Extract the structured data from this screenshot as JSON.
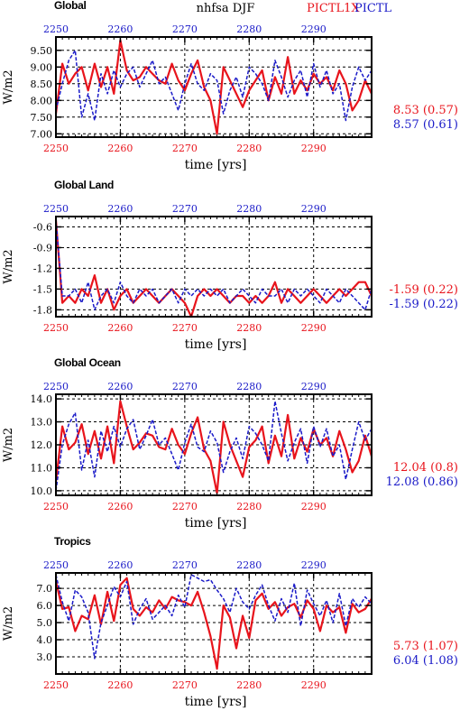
{
  "header": {
    "title": "nhfsa DJF",
    "legend_red": "PICTL1X",
    "legend_blue": "PICTL"
  },
  "colors": {
    "red": "#e8141c",
    "blue": "#1a1ac8",
    "black": "#000000"
  },
  "chart_data": [
    {
      "type": "line",
      "title": "Global",
      "xlabel": "time [yrs]",
      "ylabel": "W/m2",
      "xlim": [
        2250,
        2299
      ],
      "ylim": [
        6.9,
        9.9
      ],
      "x_ticks": [
        "2250",
        "2260",
        "2270",
        "2280",
        "2290"
      ],
      "y_ticks": [
        "7.00",
        "7.50",
        "8.00",
        "8.50",
        "9.00",
        "9.50"
      ],
      "y_tick_values": [
        7.0,
        7.5,
        8.0,
        8.5,
        9.0,
        9.5
      ],
      "grid": true,
      "stats": [
        "8.53 (0.57)",
        "8.57 (0.61)"
      ],
      "series": [
        {
          "name": "PICTL1X",
          "color": "red",
          "dash": false,
          "values": [
            7.6,
            9.1,
            8.5,
            8.8,
            9.0,
            8.3,
            9.1,
            8.4,
            9.0,
            8.2,
            9.8,
            8.9,
            8.6,
            8.7,
            9.0,
            8.8,
            8.6,
            8.5,
            9.1,
            8.6,
            8.3,
            8.8,
            9.2,
            8.4,
            8.0,
            7.0,
            9.0,
            8.6,
            8.2,
            7.8,
            8.3,
            8.6,
            8.9,
            8.0,
            8.7,
            8.2,
            9.3,
            8.2,
            8.6,
            8.3,
            8.8,
            8.5,
            8.7,
            8.3,
            8.9,
            8.5,
            7.7,
            8.0,
            8.6,
            8.2
          ]
        },
        {
          "name": "PICTL",
          "color": "blue",
          "dash": true,
          "values": [
            7.7,
            8.5,
            9.2,
            9.5,
            7.5,
            8.2,
            7.4,
            8.8,
            8.2,
            8.9,
            8.4,
            8.8,
            9.0,
            8.4,
            8.8,
            9.2,
            8.5,
            8.7,
            8.2,
            7.7,
            8.5,
            9.1,
            8.5,
            8.3,
            8.8,
            8.6,
            7.6,
            8.3,
            8.7,
            8.1,
            9.0,
            8.8,
            8.5,
            8.0,
            9.2,
            8.7,
            8.1,
            8.6,
            8.9,
            8.1,
            9.1,
            8.4,
            8.9,
            8.2,
            8.5,
            7.4,
            8.4,
            9.0,
            8.6,
            8.9
          ]
        }
      ]
    },
    {
      "type": "line",
      "title": "Global Land",
      "xlabel": "time [yrs]",
      "ylabel": "W/m2",
      "xlim": [
        2250,
        2299
      ],
      "ylim": [
        -1.9,
        -0.45
      ],
      "x_ticks": [
        "2250",
        "2260",
        "2270",
        "2280",
        "2290"
      ],
      "y_ticks": [
        "-1.8",
        "-1.5",
        "-1.2",
        "-0.9",
        "-0.6"
      ],
      "y_tick_values": [
        -1.8,
        -1.5,
        -1.2,
        -0.9,
        -0.6
      ],
      "grid": true,
      "stats": [
        "-1.59 (0.22)",
        "-1.59 (0.22)"
      ],
      "series": [
        {
          "name": "PICTL1X",
          "color": "red",
          "dash": false,
          "values": [
            -0.5,
            -1.7,
            -1.6,
            -1.7,
            -1.5,
            -1.6,
            -1.3,
            -1.7,
            -1.5,
            -1.8,
            -1.6,
            -1.5,
            -1.7,
            -1.6,
            -1.5,
            -1.6,
            -1.7,
            -1.6,
            -1.5,
            -1.6,
            -1.7,
            -1.9,
            -1.6,
            -1.5,
            -1.6,
            -1.5,
            -1.6,
            -1.7,
            -1.6,
            -1.6,
            -1.7,
            -1.6,
            -1.7,
            -1.6,
            -1.4,
            -1.7,
            -1.5,
            -1.6,
            -1.7,
            -1.6,
            -1.5,
            -1.6,
            -1.7,
            -1.6,
            -1.5,
            -1.6,
            -1.5,
            -1.4,
            -1.4,
            -1.6
          ]
        },
        {
          "name": "PICTL",
          "color": "blue",
          "dash": true,
          "values": [
            -0.5,
            -1.6,
            -1.6,
            -1.5,
            -1.7,
            -1.4,
            -1.8,
            -1.6,
            -1.5,
            -1.7,
            -1.4,
            -1.6,
            -1.7,
            -1.5,
            -1.6,
            -1.5,
            -1.7,
            -1.6,
            -1.5,
            -1.7,
            -1.5,
            -1.6,
            -1.5,
            -1.6,
            -1.5,
            -1.6,
            -1.5,
            -1.7,
            -1.6,
            -1.5,
            -1.6,
            -1.7,
            -1.5,
            -1.6,
            -1.6,
            -1.5,
            -1.7,
            -1.5,
            -1.6,
            -1.5,
            -1.6,
            -1.7,
            -1.5,
            -1.6,
            -1.7,
            -1.5,
            -1.6,
            -1.7,
            -1.8,
            -1.5
          ]
        }
      ]
    },
    {
      "type": "line",
      "title": "Global Ocean",
      "xlabel": "time [yrs]",
      "ylabel": "W/m2",
      "xlim": [
        2250,
        2299
      ],
      "ylim": [
        9.8,
        14.2
      ],
      "x_ticks": [
        "2250",
        "2260",
        "2270",
        "2280",
        "2290"
      ],
      "y_ticks": [
        "10.0",
        "11.0",
        "12.0",
        "13.0",
        "14.0"
      ],
      "y_tick_values": [
        10.0,
        11.0,
        12.0,
        13.0,
        14.0
      ],
      "grid": true,
      "stats": [
        "12.04 (0.8)",
        "12.08 (0.86)"
      ],
      "series": [
        {
          "name": "PICTL1X",
          "color": "red",
          "dash": false,
          "values": [
            10.4,
            12.8,
            11.8,
            12.1,
            12.9,
            11.6,
            12.6,
            11.4,
            12.8,
            11.2,
            13.9,
            12.8,
            11.8,
            12.1,
            12.5,
            12.4,
            11.9,
            11.8,
            12.7,
            12.0,
            11.6,
            12.5,
            13.2,
            11.8,
            11.3,
            9.9,
            13.0,
            12.0,
            11.3,
            10.6,
            11.9,
            12.2,
            12.8,
            11.2,
            12.4,
            11.5,
            13.3,
            11.4,
            12.3,
            11.7,
            12.7,
            12.0,
            12.3,
            11.5,
            12.6,
            11.8,
            10.8,
            11.3,
            12.4,
            11.5
          ]
        },
        {
          "name": "PICTL",
          "color": "blue",
          "dash": true,
          "values": [
            10.0,
            12.0,
            12.9,
            13.4,
            10.9,
            12.2,
            10.6,
            12.6,
            11.7,
            12.8,
            11.9,
            12.7,
            13.1,
            11.8,
            12.4,
            13.1,
            12.0,
            12.3,
            11.6,
            10.9,
            12.1,
            12.9,
            11.9,
            11.7,
            12.6,
            12.1,
            10.8,
            11.7,
            12.3,
            11.4,
            12.8,
            12.5,
            12.0,
            11.3,
            13.9,
            12.5,
            11.3,
            12.1,
            12.7,
            11.2,
            12.8,
            11.9,
            12.7,
            11.5,
            12.0,
            10.5,
            11.8,
            13.0,
            12.2,
            12.7
          ]
        }
      ]
    },
    {
      "type": "line",
      "title": "Tropics",
      "xlabel": "time [yrs]",
      "ylabel": "W/m2",
      "xlim": [
        2250,
        2299
      ],
      "ylim": [
        2.0,
        7.9
      ],
      "x_ticks": [
        "2250",
        "2260",
        "2270",
        "2280",
        "2290"
      ],
      "y_ticks": [
        "3.0",
        "4.0",
        "5.0",
        "6.0",
        "7.0"
      ],
      "y_tick_values": [
        3.0,
        4.0,
        5.0,
        6.0,
        7.0
      ],
      "grid": true,
      "stats": [
        "5.73 (1.07)",
        "6.04 (1.08)"
      ],
      "series": [
        {
          "name": "PICTL1X",
          "color": "red",
          "dash": false,
          "values": [
            7.4,
            5.8,
            5.9,
            4.5,
            5.4,
            5.2,
            6.6,
            4.9,
            6.8,
            5.1,
            7.2,
            7.6,
            5.8,
            5.4,
            5.9,
            5.6,
            6.3,
            5.8,
            6.5,
            6.3,
            6.2,
            6.0,
            6.8,
            5.6,
            4.2,
            2.3,
            6.0,
            5.3,
            3.5,
            5.4,
            4.1,
            6.3,
            6.7,
            5.8,
            6.2,
            5.4,
            5.9,
            6.1,
            5.3,
            6.3,
            5.8,
            4.5,
            6.0,
            5.6,
            5.9,
            4.4,
            6.1,
            5.6,
            5.8,
            6.4
          ]
        },
        {
          "name": "PICTL",
          "color": "blue",
          "dash": true,
          "values": [
            7.8,
            6.2,
            5.1,
            6.9,
            6.5,
            5.6,
            2.9,
            5.0,
            6.0,
            7.1,
            6.5,
            7.4,
            4.9,
            5.8,
            6.4,
            5.2,
            5.6,
            6.0,
            5.4,
            6.6,
            5.9,
            7.8,
            7.6,
            7.4,
            7.5,
            6.9,
            6.4,
            5.6,
            7.0,
            6.2,
            5.8,
            6.6,
            7.2,
            6.0,
            5.1,
            6.4,
            5.6,
            7.3,
            4.8,
            6.9,
            6.1,
            5.4,
            6.3,
            5.0,
            6.7,
            4.8,
            6.4,
            5.9,
            6.5,
            6.1
          ]
        }
      ]
    }
  ]
}
